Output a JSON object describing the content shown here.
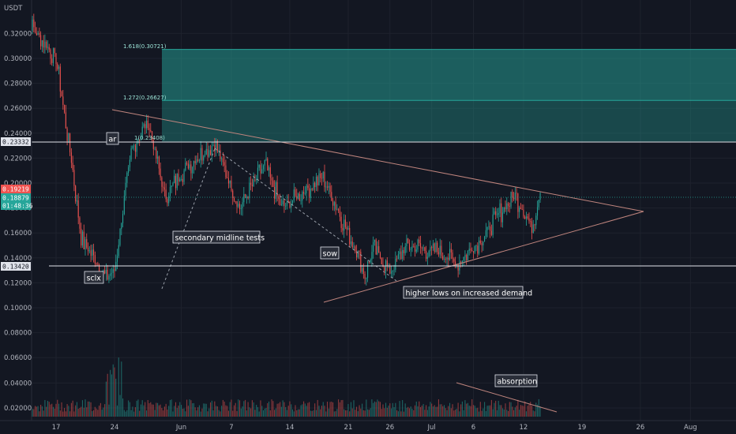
{
  "chart_data": {
    "type": "candlestick",
    "currency": "USDT",
    "y_ticks": [
      "0.32000",
      "0.30000",
      "0.28000",
      "0.26000",
      "0.24000",
      "0.22000",
      "0.20000",
      "0.18000",
      "0.16000",
      "0.14000",
      "0.12000",
      "0.10000",
      "0.08000",
      "0.06000",
      "0.04000",
      "0.02000"
    ],
    "x_ticks": [
      "17",
      "24",
      "Jun",
      "7",
      "14",
      "21",
      "26",
      "Jul",
      "6",
      "12",
      "19",
      "26",
      "Aug"
    ],
    "price_tags": {
      "resistance": "0.23332",
      "last_price": "0.19219",
      "level": "0.18879",
      "countdown": "01:48:36",
      "support": "0.13420"
    },
    "fib_levels": [
      {
        "label": "1.618(0.30721)",
        "value": 0.30721
      },
      {
        "label": "1.272(0.26627)",
        "value": 0.26627
      },
      {
        "label": "1(0.23408)",
        "value": 0.23408
      }
    ],
    "annotations": [
      {
        "id": "ar",
        "text": "ar"
      },
      {
        "id": "sclx",
        "text": "sclx"
      },
      {
        "id": "secondary",
        "text": "secondary midline tests"
      },
      {
        "id": "sow",
        "text": "sow"
      },
      {
        "id": "higher-lows",
        "text": "higher lows on increased demand"
      },
      {
        "id": "absorption",
        "text": "absorption"
      }
    ],
    "key_points": [
      {
        "date": "May 13",
        "price": 0.335
      },
      {
        "date": "May 17",
        "price": 0.3
      },
      {
        "date": "May 19",
        "price": 0.21
      },
      {
        "date": "May 20",
        "price": 0.155
      },
      {
        "date": "May 23",
        "price": 0.125
      },
      {
        "date": "May 24",
        "price": 0.13
      },
      {
        "date": "May 26",
        "price": 0.225
      },
      {
        "date": "May 28",
        "price": 0.25
      },
      {
        "date": "May 30",
        "price": 0.19
      },
      {
        "date": "Jun 2",
        "price": 0.215
      },
      {
        "date": "Jun 5",
        "price": 0.232
      },
      {
        "date": "Jun 8",
        "price": 0.18
      },
      {
        "date": "Jun 11",
        "price": 0.215
      },
      {
        "date": "Jun 13",
        "price": 0.18
      },
      {
        "date": "Jun 17",
        "price": 0.2
      },
      {
        "date": "Jun 18",
        "price": 0.205
      },
      {
        "date": "Jun 20",
        "price": 0.175
      },
      {
        "date": "Jun 22",
        "price": 0.145
      },
      {
        "date": "Jun 23",
        "price": 0.125
      },
      {
        "date": "Jun 24",
        "price": 0.148
      },
      {
        "date": "Jun 26",
        "price": 0.13
      },
      {
        "date": "Jun 28",
        "price": 0.15
      },
      {
        "date": "Jul 2",
        "price": 0.145
      },
      {
        "date": "Jul 4",
        "price": 0.135
      },
      {
        "date": "Jul 7",
        "price": 0.155
      },
      {
        "date": "Jul 9",
        "price": 0.175
      },
      {
        "date": "Jul 11",
        "price": 0.19
      },
      {
        "date": "Jul 13",
        "price": 0.165
      },
      {
        "date": "Jul 14",
        "price": 0.192
      }
    ],
    "levels": {
      "resistance": 0.23332,
      "support": 0.1342,
      "current": 0.18879
    },
    "colors": {
      "up": "#26a69a",
      "down": "#ef5350",
      "zone": "#26a69a",
      "trend": "#c0857e",
      "background": "#131722"
    }
  }
}
